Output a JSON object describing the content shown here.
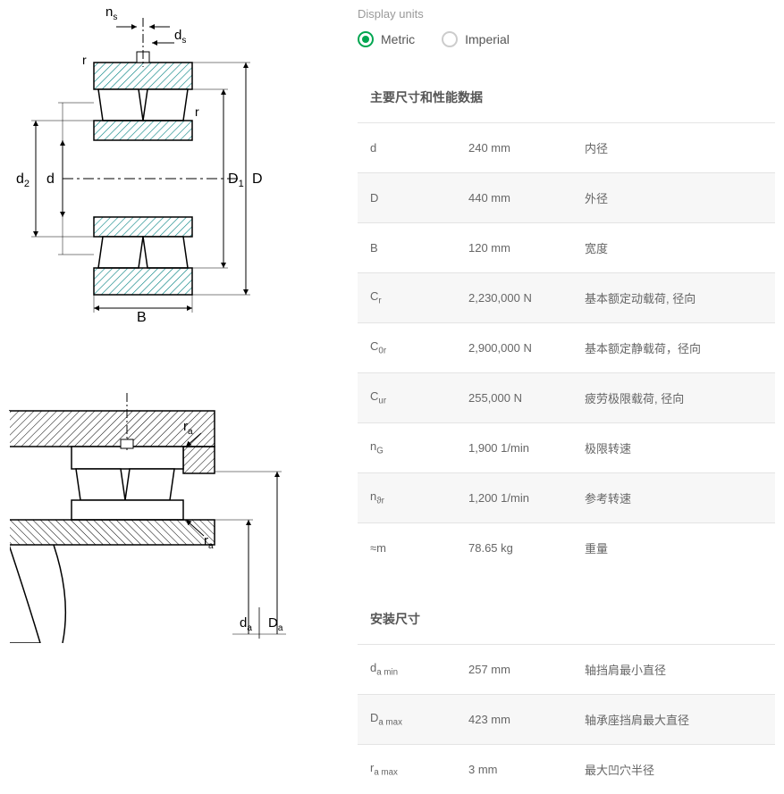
{
  "units": {
    "label": "Display units",
    "metric": "Metric",
    "imperial": "Imperial",
    "selected": "metric"
  },
  "sections": [
    {
      "title": "主要尺寸和性能数据",
      "rows": [
        {
          "sym": "d",
          "sub": "",
          "val": "240 mm",
          "desc": "内径"
        },
        {
          "sym": "D",
          "sub": "",
          "val": "440 mm",
          "desc": "外径"
        },
        {
          "sym": "B",
          "sub": "",
          "val": "120 mm",
          "desc": "宽度"
        },
        {
          "sym": "C",
          "sub": "r",
          "val": "2,230,000 N",
          "desc": "基本额定动载荷, 径向"
        },
        {
          "sym": "C",
          "sub": "0r",
          "val": "2,900,000 N",
          "desc": "基本额定静载荷，径向"
        },
        {
          "sym": "C",
          "sub": "ur",
          "val": "255,000 N",
          "desc": "疲劳极限载荷, 径向"
        },
        {
          "sym": "n",
          "sub": "G",
          "val": "1,900 1/min",
          "desc": "极限转速"
        },
        {
          "sym": "n",
          "sub": "ϑr",
          "val": "1,200 1/min",
          "desc": "参考转速"
        },
        {
          "sym": "≈m",
          "sub": "",
          "val": "78.65 kg",
          "desc": "重量"
        }
      ]
    },
    {
      "title": "安装尺寸",
      "rows": [
        {
          "sym": "d",
          "sub": "a min",
          "val": "257 mm",
          "desc": "轴挡肩最小直径"
        },
        {
          "sym": "D",
          "sub": "a max",
          "val": "423 mm",
          "desc": "轴承座挡肩最大直径"
        },
        {
          "sym": "r",
          "sub": "a max",
          "val": "3 mm",
          "desc": "最大凹穴半径"
        }
      ]
    }
  ],
  "colors": {
    "accent": "#00a650",
    "text": "#555555",
    "muted": "#999999",
    "border": "#e4e4e4",
    "row_alt": "#f7f7f7",
    "hatch": "#008080"
  },
  "diagram1_labels": {
    "ns": "n",
    "ns_sub": "s",
    "ds": "d",
    "ds_sub": "s",
    "r1": "r",
    "r2": "r",
    "d2": "d",
    "d2_sub": "2",
    "d": "d",
    "D1": "D",
    "D1_sub": "1",
    "D": "D",
    "B": "B"
  },
  "diagram2_labels": {
    "ra1": "r",
    "ra1_sub": "a",
    "ra2": "r",
    "ra2_sub": "a",
    "da": "d",
    "da_sub": "a",
    "Da": "D",
    "Da_sub": "a"
  }
}
